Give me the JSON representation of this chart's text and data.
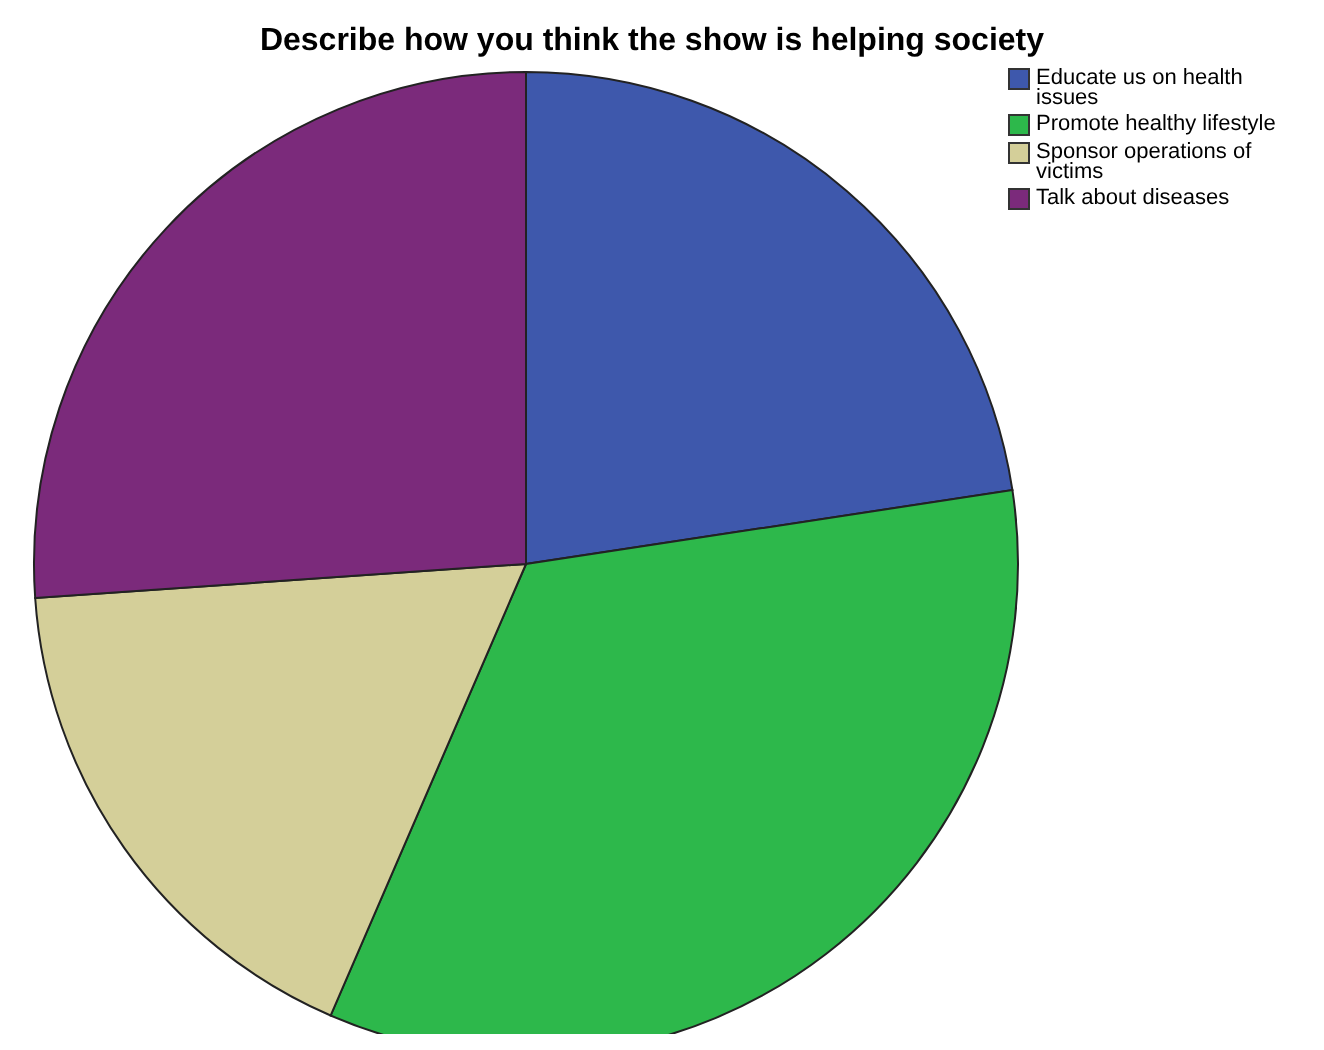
{
  "chart_data": {
    "type": "pie",
    "title": "Describe how you think the show is helping society",
    "categories": [
      "Educate us on health issues",
      "Promote healthy lifestyle",
      "Sponsor operations of victims",
      "Talk about diseases"
    ],
    "values": [
      22.6,
      33.9,
      17.4,
      26.1
    ],
    "colors": [
      "#3e58ac",
      "#2db84b",
      "#d4cf99",
      "#7b2a7b"
    ],
    "legend": "top right"
  }
}
